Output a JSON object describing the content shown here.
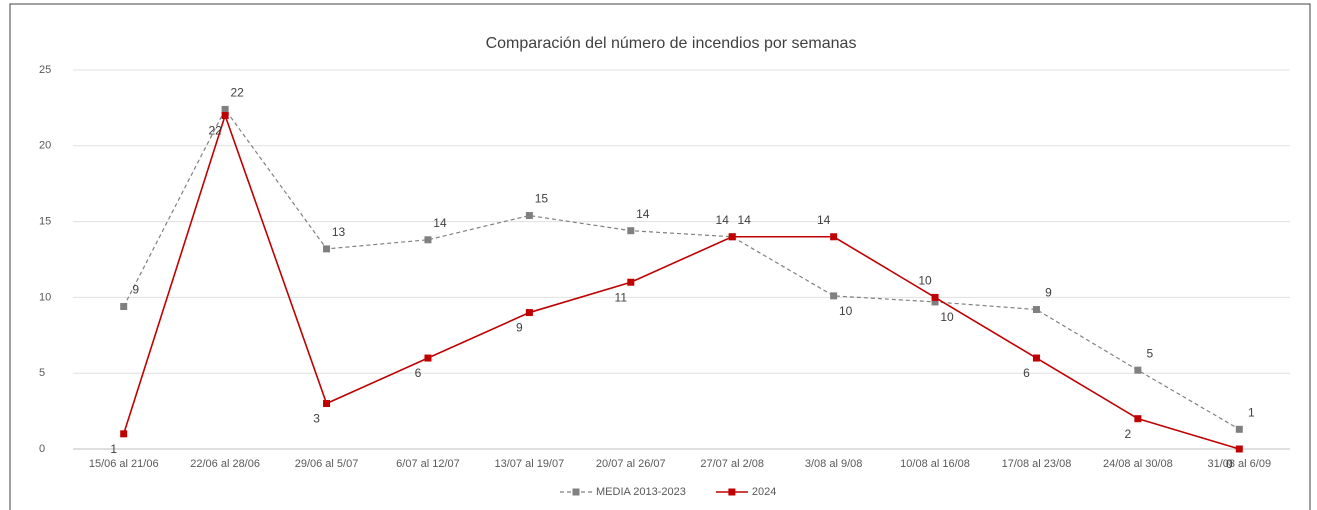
{
  "chart_data": {
    "type": "line",
    "title": "Comparación del número de incendios por semanas",
    "categories": [
      "15/06 al 21/06",
      "22/06 al 28/06",
      "29/06 al 5/07",
      "6/07 al 12/07",
      "13/07 al 19/07",
      "20/07 al 26/07",
      "27/07 al 2/08",
      "3/08 al 9/08",
      "10/08 al 16/08",
      "17/08 al 23/08",
      "24/08 al 30/08",
      "31/08 al 6/09"
    ],
    "series": [
      {
        "name": "MEDIA 2013-2023",
        "color": "#808080",
        "dashed": true,
        "values": [
          9.4,
          22.4,
          13.2,
          13.8,
          15.4,
          14.4,
          14.0,
          10.1,
          9.7,
          9.2,
          5.2,
          1.3
        ],
        "value_labels": [
          "9",
          "22",
          "13",
          "14",
          "15",
          "14",
          "14",
          "10",
          "10",
          "9",
          "5",
          "1"
        ]
      },
      {
        "name": "2024",
        "color": "#c00000",
        "dashed": false,
        "values": [
          1,
          22,
          3,
          6,
          9,
          11,
          14,
          14,
          10,
          6,
          2,
          0
        ]
      }
    ],
    "ylim": [
      0,
      25
    ],
    "yticks": [
      0,
      5,
      10,
      15,
      20,
      25
    ],
    "grid": true,
    "legend": "bottom"
  }
}
